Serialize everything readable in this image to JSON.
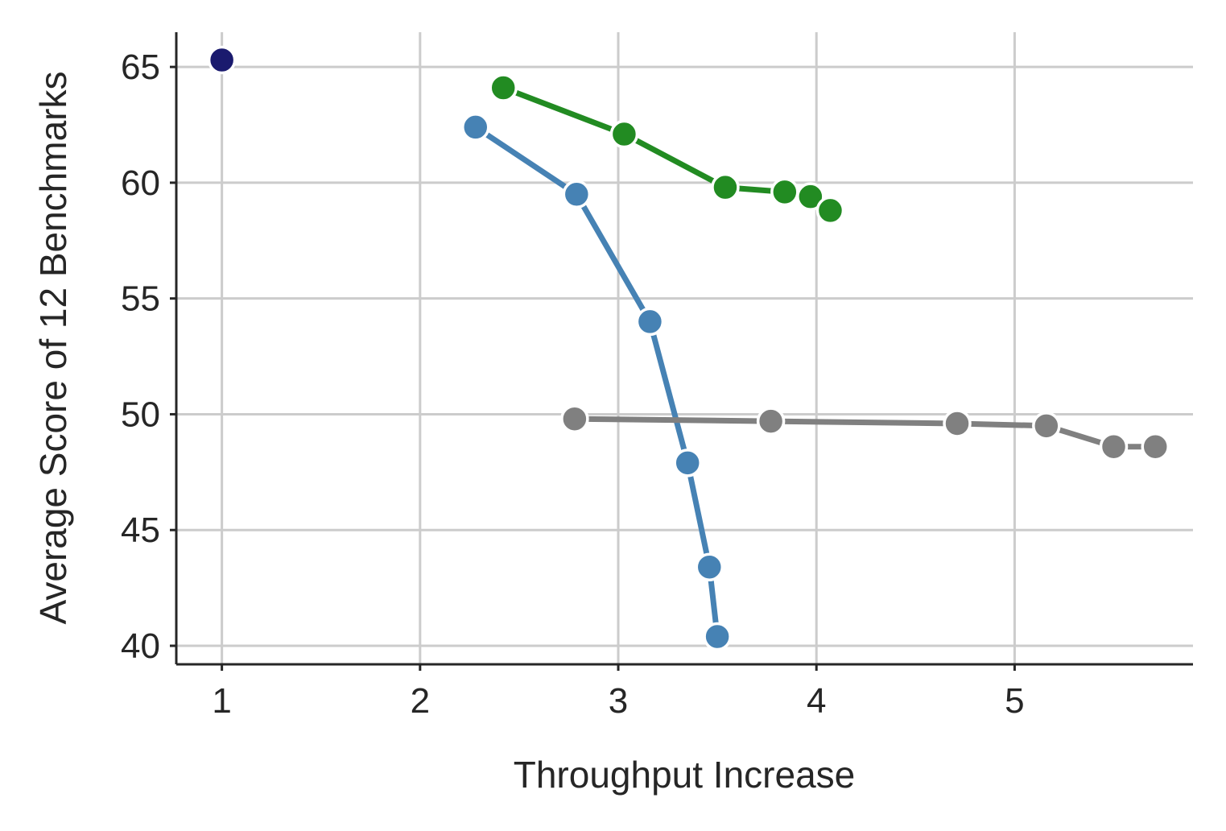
{
  "chart_data": {
    "type": "line",
    "xlabel": "Throughput Increase",
    "ylabel": "Average Score of 12 Benchmarks",
    "xlim": [
      0.77,
      5.9
    ],
    "ylim": [
      39.2,
      66.5
    ],
    "xticks": [
      1,
      2,
      3,
      4,
      5
    ],
    "yticks": [
      40,
      45,
      50,
      55,
      60,
      65
    ],
    "grid": true,
    "series": [
      {
        "color": "#1a1a6e",
        "points": [
          [
            1.0,
            65.3
          ]
        ]
      },
      {
        "color": "#228b22",
        "points": [
          [
            2.42,
            64.1
          ],
          [
            3.03,
            62.1
          ],
          [
            3.54,
            59.8
          ],
          [
            3.84,
            59.6
          ],
          [
            3.97,
            59.4
          ],
          [
            4.07,
            58.8
          ]
        ]
      },
      {
        "color": "#4682b4",
        "points": [
          [
            2.28,
            62.4
          ],
          [
            2.79,
            59.5
          ],
          [
            3.16,
            54.0
          ],
          [
            3.35,
            47.9
          ],
          [
            3.46,
            43.4
          ],
          [
            3.5,
            40.4
          ]
        ]
      },
      {
        "color": "#808080",
        "points": [
          [
            2.78,
            49.8
          ],
          [
            3.77,
            49.7
          ],
          [
            4.71,
            49.6
          ],
          [
            5.16,
            49.5
          ],
          [
            5.5,
            48.6
          ],
          [
            5.71,
            48.6
          ]
        ]
      }
    ]
  }
}
